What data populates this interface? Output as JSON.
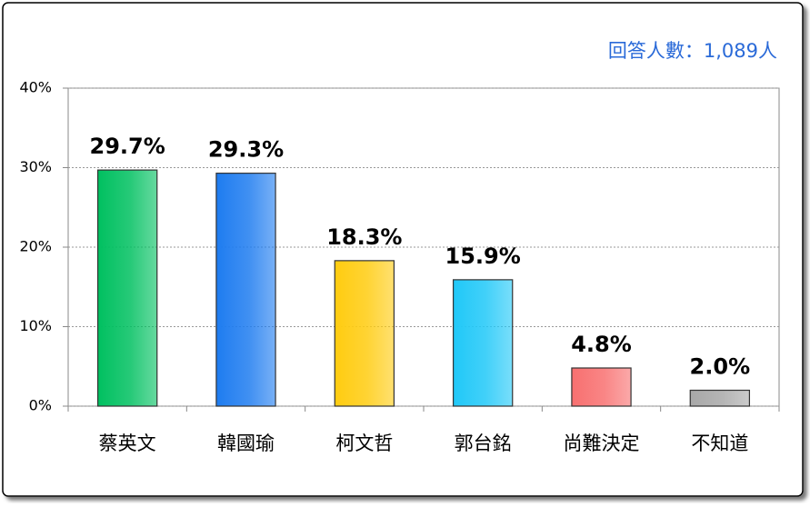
{
  "chart_data": {
    "type": "bar",
    "annotation": "回答人數：1,089人",
    "categories": [
      "蔡英文",
      "韓國瑜",
      "柯文哲",
      "郭台銘",
      "尚難決定",
      "不知道"
    ],
    "values": [
      29.7,
      29.3,
      18.3,
      15.9,
      4.8,
      2.0
    ],
    "value_labels": [
      "29.7%",
      "29.3%",
      "18.3%",
      "15.9%",
      "4.8%",
      "2.0%"
    ],
    "colors": [
      "#00c060",
      "#1e7cf0",
      "#ffcc10",
      "#20c8f8",
      "#f87070",
      "#a8a8a8"
    ],
    "ylim": [
      0,
      40
    ],
    "yticks": [
      {
        "value": 0,
        "label": "0%"
      },
      {
        "value": 10,
        "label": "10%"
      },
      {
        "value": 20,
        "label": "20%"
      },
      {
        "value": 30,
        "label": "30%"
      },
      {
        "value": 40,
        "label": "40%"
      }
    ],
    "grid": true
  }
}
